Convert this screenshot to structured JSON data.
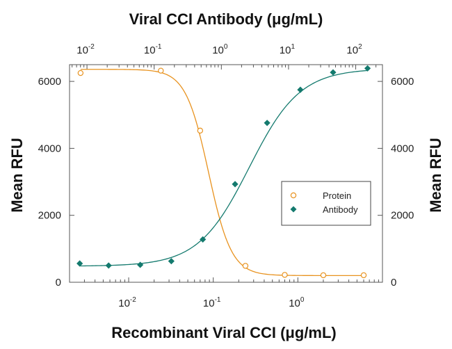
{
  "chart_data": {
    "type": "scatter",
    "title": "",
    "x_bottom": {
      "label": "Recombinant Viral CCI (μg/mL)",
      "scale": "log",
      "range": [
        0.002,
        10
      ],
      "ticks": [
        {
          "value": 0.01,
          "base": "10",
          "exp": "-2"
        },
        {
          "value": 0.1,
          "base": "10",
          "exp": "-1"
        },
        {
          "value": 1,
          "base": "10",
          "exp": "0"
        }
      ]
    },
    "x_top": {
      "label": "Viral CCI Antibody (μg/mL)",
      "scale": "log",
      "range": [
        0.0055,
        250
      ],
      "ticks": [
        {
          "value": 0.01,
          "base": "10",
          "exp": "-2"
        },
        {
          "value": 0.1,
          "base": "10",
          "exp": "-1"
        },
        {
          "value": 1,
          "base": "10",
          "exp": "0"
        },
        {
          "value": 10,
          "base": "10",
          "exp": "1"
        },
        {
          "value": 100,
          "base": "10",
          "exp": "2"
        }
      ]
    },
    "y_left": {
      "label": "Mean RFU",
      "range": [
        0,
        6500
      ],
      "ticks": [
        {
          "value": 0,
          "label": "0"
        },
        {
          "value": 2000,
          "label": "2000"
        },
        {
          "value": 4000,
          "label": "4000"
        },
        {
          "value": 6000,
          "label": "6000"
        }
      ]
    },
    "y_right": {
      "label": "Mean RFU",
      "ticks": [
        {
          "value": 0,
          "label": "0"
        },
        {
          "value": 2000,
          "label": "2000"
        },
        {
          "value": 4000,
          "label": "4000"
        },
        {
          "value": 6000,
          "label": "6000"
        }
      ]
    },
    "series": [
      {
        "name": "Protein",
        "axis": "bottom",
        "marker": "open-circle",
        "color": "#E8921E",
        "x": [
          0.0027,
          0.024,
          0.07,
          0.24,
          0.7,
          2.0,
          6.0
        ],
        "y": [
          6250,
          6320,
          4530,
          490,
          220,
          210,
          210
        ],
        "fit": {
          "bottom": 200,
          "top": 6360,
          "ec50": 0.088,
          "hill": 3.2
        }
      },
      {
        "name": "Antibody",
        "axis": "top",
        "marker": "filled-diamond",
        "color": "#147A6E",
        "x": [
          0.0078,
          0.021,
          0.062,
          0.18,
          0.53,
          1.6,
          4.8,
          15,
          46,
          150
        ],
        "y": [
          560,
          500,
          520,
          630,
          1280,
          2930,
          4760,
          5750,
          6270,
          6390
        ],
        "fit": {
          "bottom": 480,
          "top": 6380,
          "ec50": 2.6,
          "hill": 1.15
        }
      }
    ],
    "legend": {
      "position": "right-middle",
      "entries": [
        "Protein",
        "Antibody"
      ]
    }
  }
}
